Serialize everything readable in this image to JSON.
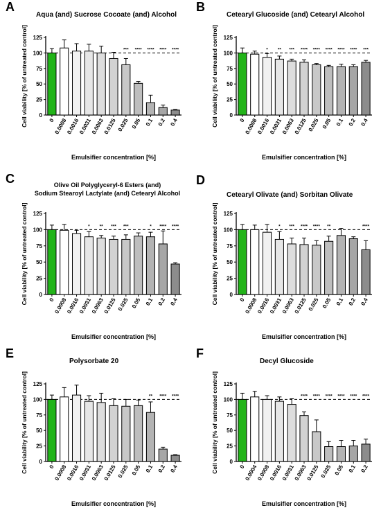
{
  "chart_data": [
    {
      "panel": "A",
      "type": "bar",
      "title": "Aqua (and) Sucrose Cocoate (and) Alcohol",
      "xlabel": "Emulsifier concentration [%]",
      "ylabel": "Cell viability [% of untreated control]",
      "ylim": [
        0,
        125
      ],
      "yticks": [
        "0",
        "25",
        "50",
        "75",
        "100",
        "125"
      ],
      "categories": [
        "0",
        "0.0008",
        "0.0016",
        "0.0031",
        "0.0063",
        "0.0125",
        "0.025",
        "0.05",
        "0.1",
        "0.2",
        "0.4"
      ],
      "values": [
        100,
        108,
        103,
        103,
        100,
        91,
        81,
        51,
        20,
        12,
        8
      ],
      "errors": [
        7,
        13,
        12,
        11,
        11,
        10,
        10,
        3,
        12,
        4,
        1
      ],
      "significance": [
        "",
        "",
        "",
        "",
        "",
        "",
        "***",
        "****",
        "****",
        "****",
        "****"
      ],
      "reference_line": 100
    },
    {
      "panel": "B",
      "type": "bar",
      "title": "Cetearyl Glucoside (and) Cetearyl Alcohol",
      "xlabel": "Emulsifier concentration [%]",
      "ylabel": "Cell viability [% of untreated control]",
      "ylim": [
        0,
        125
      ],
      "yticks": [
        "0",
        "25",
        "50",
        "75",
        "100",
        "125"
      ],
      "categories": [
        "0",
        "0.0008",
        "0.0016",
        "0.0031",
        "0.0063",
        "0.0125",
        "0.025",
        "0.05",
        "0.1",
        "0.2",
        "0.4"
      ],
      "values": [
        100,
        98,
        93,
        90,
        87,
        85,
        81,
        78,
        78,
        78,
        85
      ],
      "errors": [
        8,
        5,
        6,
        5,
        3,
        4,
        2,
        2,
        4,
        3,
        3
      ],
      "significance": [
        "",
        "",
        "*",
        "**",
        "***",
        "****",
        "****",
        "****",
        "****",
        "****",
        "***"
      ],
      "reference_line": 100
    },
    {
      "panel": "C",
      "type": "bar",
      "title": "Olive Oil Polyglyceryl-6 Esters (and)\nSodium Stearoyl Lactylate (and) Cetearyl Alcohol",
      "xlabel": "Emulsifier concentration [%]",
      "ylabel": "Cell viability [% of untreated control]",
      "ylim": [
        0,
        125
      ],
      "yticks": [
        "0",
        "25",
        "50",
        "75",
        "100",
        "125"
      ],
      "categories": [
        "0",
        "0.0008",
        "0.0016",
        "0.0031",
        "0.0063",
        "0.0125",
        "0.025",
        "0.05",
        "0.1",
        "0.2",
        "0.4"
      ],
      "values": [
        100,
        99,
        94,
        89,
        87,
        85,
        85,
        90,
        89,
        78,
        47
      ],
      "errors": [
        7,
        9,
        5,
        8,
        4,
        5,
        7,
        5,
        7,
        20,
        2
      ],
      "significance": [
        "",
        "",
        "",
        "*",
        "**",
        "***",
        "***",
        "",
        "*",
        "****",
        "****"
      ],
      "reference_line": 100
    },
    {
      "panel": "D",
      "type": "bar",
      "title": "Cetearyl Olivate (and) Sorbitan Olivate",
      "xlabel": "Emulsifier concentration [%]",
      "ylabel": "Cell viability [% of untreated control]",
      "ylim": [
        0,
        125
      ],
      "yticks": [
        "0",
        "25",
        "50",
        "75",
        "100",
        "125"
      ],
      "categories": [
        "0",
        "0.0008",
        "0.0016",
        "0.0031",
        "0.0063",
        "0.0125",
        "0.025",
        "0.05",
        "0.1",
        "0.2",
        "0.4"
      ],
      "values": [
        100,
        100,
        96,
        85,
        78,
        77,
        76,
        82,
        91,
        86,
        69
      ],
      "errors": [
        8,
        7,
        12,
        12,
        9,
        10,
        7,
        8,
        11,
        3,
        14
      ],
      "significance": [
        "",
        "",
        "",
        "*",
        "***",
        "****",
        "****",
        "**",
        "",
        "",
        "****"
      ],
      "reference_line": 100
    },
    {
      "panel": "E",
      "type": "bar",
      "title": "Polysorbate 20",
      "xlabel": "Emulsifier concentration [%]",
      "ylabel": "Cell viability [% of untreated control]",
      "ylim": [
        0,
        125
      ],
      "yticks": [
        "0",
        "25",
        "50",
        "75",
        "100",
        "125"
      ],
      "categories": [
        "0",
        "0.0008",
        "0.0016",
        "0.0031",
        "0.0063",
        "0.0125",
        "0.025",
        "0.05",
        "0.1",
        "0.2",
        "0.4"
      ],
      "values": [
        100,
        104,
        107,
        97,
        95,
        90,
        89,
        90,
        79,
        20,
        10
      ],
      "errors": [
        7,
        15,
        16,
        9,
        15,
        11,
        11,
        9,
        17,
        3,
        1
      ],
      "significance": [
        "",
        "",
        "",
        "",
        "",
        "",
        "",
        "",
        "**",
        "****",
        "****"
      ],
      "reference_line": 100
    },
    {
      "panel": "F",
      "type": "bar",
      "title": "Decyl Glucoside",
      "xlabel": "Emulsifier concentration [%]",
      "ylabel": "Cell viability [% of untreated control]",
      "ylim": [
        0,
        125
      ],
      "yticks": [
        "0",
        "25",
        "50",
        "75",
        "100",
        "125"
      ],
      "categories": [
        "0",
        "0.0004",
        "0.0008",
        "0.0016",
        "0.0031",
        "0.0063",
        "0.0125",
        "0.025",
        "0.05",
        "0.1",
        "0.2"
      ],
      "values": [
        100,
        104,
        100,
        97,
        92,
        74,
        48,
        24,
        24,
        25,
        28
      ],
      "errors": [
        10,
        9,
        6,
        7,
        9,
        6,
        19,
        8,
        10,
        9,
        8
      ],
      "significance": [
        "",
        "",
        "",
        "",
        "",
        "****",
        "****",
        "****",
        "****",
        "****",
        "****"
      ],
      "reference_line": 100
    }
  ],
  "colors": {
    "control_bar": "#22b419",
    "bar_shades": [
      "#22b419",
      "#ffffff",
      "#f1f1f1",
      "#e6e6e6",
      "#dddddd",
      "#d2d2d2",
      "#c8c8c8",
      "#bebebe",
      "#b3b3b3",
      "#a6a6a6",
      "#8c8c8c"
    ],
    "axis": "#000000"
  }
}
